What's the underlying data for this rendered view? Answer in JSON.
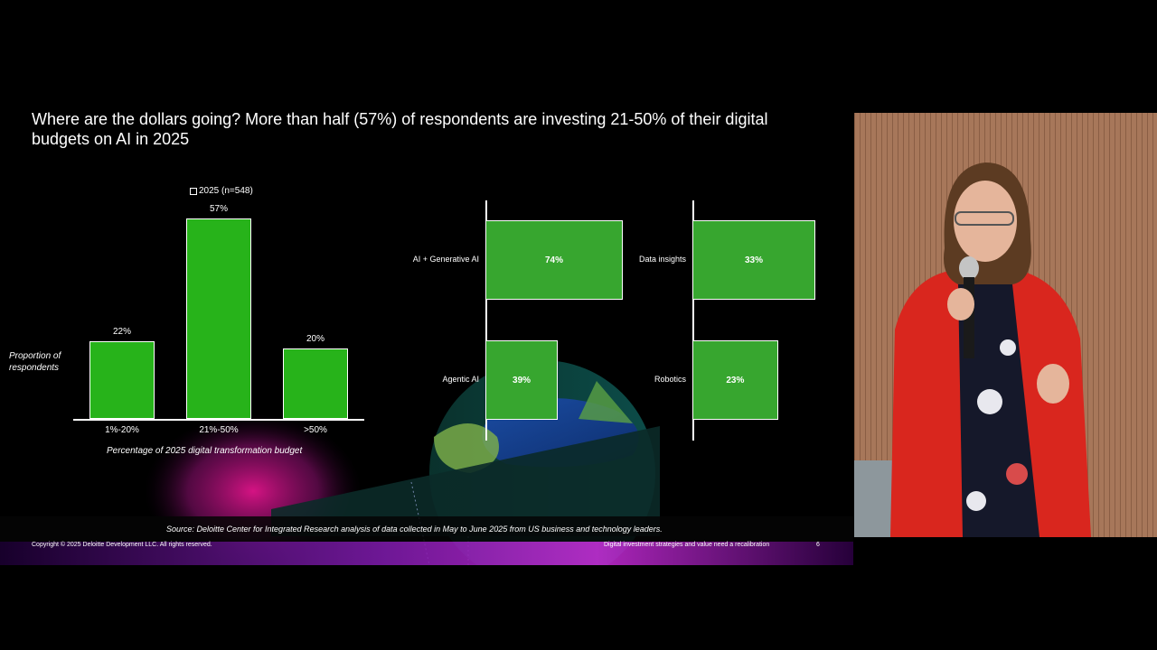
{
  "slide": {
    "title": "Where are the dollars going? More than half (57%) of respondents are investing  21-50% of their digital budgets on AI in 2025",
    "source": "Source: Deloitte Center for Integrated Research analysis of data collected in May to June 2025 from US business and technology leaders.",
    "copyright": "Copyright © 2025 Deloitte Development LLC. All rights reserved.",
    "footer_title": "Digital investment strategies and value need a recalibration",
    "page_number": "6"
  },
  "chart_data": [
    {
      "type": "bar",
      "legend": "2025 (n=548)",
      "ylabel": "Proportion of respondents",
      "xlabel": "Percentage of  2025 digital transformation budget",
      "categories": [
        "1%-20%",
        "21%-50%",
        ">50%"
      ],
      "values": [
        22,
        57,
        20
      ],
      "value_labels": [
        "22%",
        "57%",
        "20%"
      ],
      "ylim": [
        0,
        57
      ]
    },
    {
      "type": "bar",
      "orientation": "horizontal",
      "categories": [
        "AI + Generative AI",
        "Agentic AI"
      ],
      "values": [
        74,
        39
      ],
      "value_labels": [
        "74%",
        "39%"
      ],
      "xlim": [
        0,
        74
      ]
    },
    {
      "type": "bar",
      "orientation": "horizontal",
      "categories": [
        "Data insights",
        "Robotics"
      ],
      "values": [
        33,
        23
      ],
      "value_labels": [
        "33%",
        "23%"
      ],
      "xlim": [
        0,
        33
      ]
    }
  ],
  "colors": {
    "bar": "#27b31a",
    "bar_light": "#37a62f",
    "background": "#000000",
    "jacket": "#d9261e"
  }
}
